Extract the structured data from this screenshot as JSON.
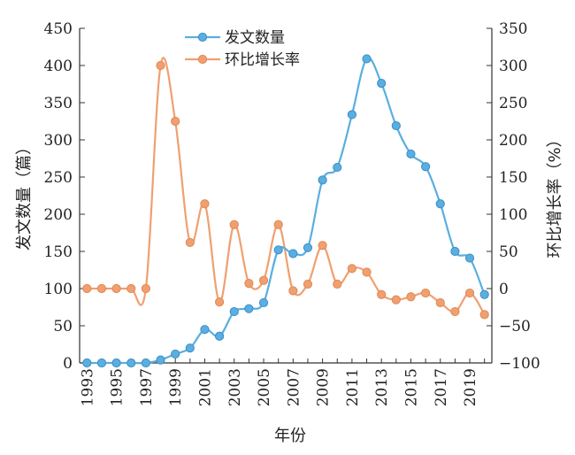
{
  "chart_data": {
    "type": "line",
    "x": [
      1993,
      1994,
      1995,
      1996,
      1997,
      1998,
      1999,
      2000,
      2001,
      2002,
      2003,
      2004,
      2005,
      2006,
      2007,
      2008,
      2009,
      2010,
      2011,
      2012,
      2013,
      2014,
      2015,
      2016,
      2017,
      2018,
      2019,
      2020
    ],
    "x_tick_labels": [
      "1993",
      "1995",
      "1997",
      "1999",
      "2001",
      "2003",
      "2005",
      "2007",
      "2009",
      "2011",
      "2013",
      "2015",
      "2017",
      "2019"
    ],
    "xlabel": "年份",
    "ylabel_left": "发文数量（篇）",
    "ylabel_right": "环比增长率（%）",
    "ylim_left": [
      0,
      450
    ],
    "ylim_right": [
      -100,
      350
    ],
    "yticks_left": [
      "0",
      "50",
      "100",
      "150",
      "200",
      "250",
      "300",
      "350",
      "400",
      "450"
    ],
    "yticks_right": [
      "−100",
      "−50",
      "0",
      "50",
      "100",
      "150",
      "200",
      "250",
      "300",
      "350"
    ],
    "legend_position": "top-center",
    "grid": false,
    "series": [
      {
        "name": "发文数量",
        "axis": "left",
        "color": "#5aaee0",
        "values": [
          0,
          0,
          0,
          0,
          0,
          4,
          12,
          20,
          45,
          36,
          69,
          73,
          81,
          152,
          147,
          155,
          246,
          263,
          334,
          409,
          376,
          319,
          281,
          264,
          214,
          150,
          141,
          92
        ]
      },
      {
        "name": "环比增长率",
        "axis": "right",
        "color": "#f0a070",
        "values": [
          0,
          0,
          0,
          0,
          0,
          300,
          225,
          62,
          114,
          -18,
          86,
          7,
          11,
          86,
          -3,
          6,
          58,
          6,
          27,
          22,
          -8,
          -15,
          -11,
          -6,
          -19,
          -31,
          -6,
          -35
        ]
      }
    ]
  }
}
